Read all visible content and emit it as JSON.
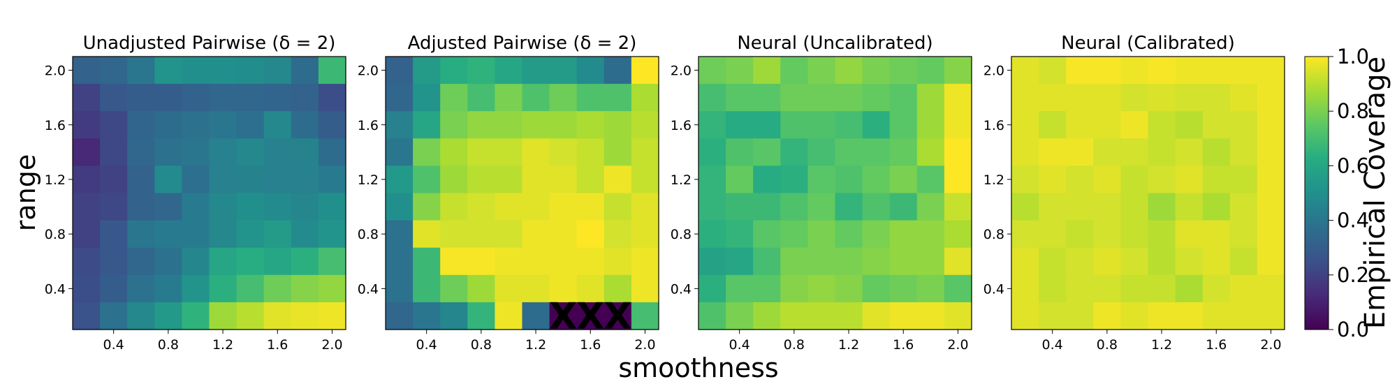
{
  "chart_data": {
    "type": "heatmap",
    "figure": {
      "xlabel": "smoothness",
      "ylabel": "range",
      "colorbar": {
        "label": "Empirical Coverage",
        "range": [
          0.0,
          1.0
        ],
        "ticks": [
          "0.0",
          "0.2",
          "0.4",
          "0.6",
          "0.8",
          "1.0"
        ],
        "colormap": "viridis"
      },
      "x_ticks": [
        "0.4",
        "0.8",
        "1.2",
        "1.6",
        "2.0"
      ],
      "y_ticks": [
        "2.0",
        "1.6",
        "1.2",
        "0.8",
        "0.4"
      ],
      "grid_rows": 10,
      "grid_cols": 10,
      "row_order": "top row corresponds to range 2.0, bottom row to range 0.2",
      "col_order": "left column corresponds to smoothness 0.2, right column to smoothness 2.0",
      "missing_marker": "X"
    },
    "panels": [
      {
        "title": "Unadjusted Pairwise (δ = 2)",
        "values": [
          [
            0.32,
            0.34,
            0.4,
            0.52,
            0.5,
            0.5,
            0.49,
            0.47,
            0.36,
            0.68
          ],
          [
            0.2,
            0.28,
            0.3,
            0.3,
            0.32,
            0.34,
            0.34,
            0.33,
            0.32,
            0.24
          ],
          [
            0.18,
            0.22,
            0.33,
            0.36,
            0.38,
            0.4,
            0.37,
            0.47,
            0.36,
            0.3
          ],
          [
            0.12,
            0.22,
            0.34,
            0.38,
            0.4,
            0.44,
            0.47,
            0.44,
            0.45,
            0.36
          ],
          [
            0.18,
            0.2,
            0.32,
            0.48,
            0.37,
            0.44,
            0.45,
            0.44,
            0.44,
            0.42
          ],
          [
            0.2,
            0.22,
            0.32,
            0.34,
            0.42,
            0.47,
            0.5,
            0.48,
            0.46,
            0.5
          ],
          [
            0.2,
            0.28,
            0.4,
            0.42,
            0.42,
            0.47,
            0.52,
            0.55,
            0.48,
            0.52
          ],
          [
            0.23,
            0.28,
            0.34,
            0.38,
            0.46,
            0.6,
            0.63,
            0.6,
            0.64,
            0.7
          ],
          [
            0.24,
            0.3,
            0.38,
            0.42,
            0.52,
            0.64,
            0.7,
            0.78,
            0.82,
            0.84
          ],
          [
            0.26,
            0.38,
            0.47,
            0.54,
            0.65,
            0.86,
            0.9,
            0.96,
            0.97,
            0.98
          ]
        ]
      },
      {
        "title": "Adjusted Pairwise (δ = 2)",
        "values": [
          [
            0.32,
            0.55,
            0.63,
            0.65,
            0.6,
            0.55,
            0.55,
            0.48,
            0.36,
            1.0
          ],
          [
            0.34,
            0.52,
            0.78,
            0.7,
            0.8,
            0.72,
            0.78,
            0.72,
            0.72,
            0.88
          ],
          [
            0.44,
            0.6,
            0.8,
            0.84,
            0.84,
            0.86,
            0.86,
            0.88,
            0.86,
            0.9
          ],
          [
            0.4,
            0.8,
            0.88,
            0.92,
            0.92,
            0.96,
            0.94,
            0.92,
            0.86,
            0.92
          ],
          [
            0.54,
            0.72,
            0.86,
            0.9,
            0.9,
            0.96,
            0.96,
            0.92,
            0.98,
            0.92
          ],
          [
            0.5,
            0.82,
            0.92,
            0.94,
            0.96,
            0.96,
            0.98,
            0.98,
            0.92,
            0.96
          ],
          [
            0.38,
            0.96,
            0.94,
            0.94,
            0.94,
            0.98,
            0.98,
            1.0,
            0.94,
            0.96
          ],
          [
            0.38,
            0.68,
            0.99,
            0.99,
            0.98,
            0.98,
            0.98,
            0.98,
            0.96,
            0.98
          ],
          [
            0.38,
            0.68,
            0.78,
            0.86,
            0.96,
            0.96,
            0.98,
            0.96,
            0.88,
            0.98
          ],
          [
            0.34,
            0.4,
            0.46,
            0.66,
            0.98,
            0.36,
            null,
            null,
            null,
            0.7
          ]
        ]
      },
      {
        "title": "Neural (Uncalibrated)",
        "values": [
          [
            0.78,
            0.8,
            0.86,
            0.76,
            0.8,
            0.84,
            0.8,
            0.78,
            0.76,
            0.82
          ],
          [
            0.7,
            0.74,
            0.74,
            0.78,
            0.78,
            0.78,
            0.76,
            0.74,
            0.86,
            0.98
          ],
          [
            0.66,
            0.62,
            0.62,
            0.72,
            0.72,
            0.7,
            0.64,
            0.74,
            0.86,
            0.98
          ],
          [
            0.64,
            0.72,
            0.74,
            0.66,
            0.7,
            0.74,
            0.74,
            0.76,
            0.88,
            1.0
          ],
          [
            0.66,
            0.76,
            0.62,
            0.64,
            0.74,
            0.72,
            0.76,
            0.8,
            0.74,
            1.0
          ],
          [
            0.66,
            0.68,
            0.68,
            0.72,
            0.76,
            0.66,
            0.72,
            0.68,
            0.8,
            0.92
          ],
          [
            0.64,
            0.66,
            0.74,
            0.76,
            0.8,
            0.76,
            0.8,
            0.84,
            0.84,
            0.88
          ],
          [
            0.58,
            0.6,
            0.7,
            0.8,
            0.8,
            0.8,
            0.82,
            0.84,
            0.84,
            0.96
          ],
          [
            0.64,
            0.74,
            0.74,
            0.82,
            0.84,
            0.82,
            0.76,
            0.78,
            0.8,
            0.74
          ],
          [
            0.72,
            0.8,
            0.86,
            0.9,
            0.9,
            0.9,
            0.96,
            0.98,
            0.98,
            0.96
          ]
        ]
      },
      {
        "title": "Neural (Calibrated)",
        "values": [
          [
            0.96,
            0.94,
            0.99,
            0.99,
            0.98,
            0.99,
            0.98,
            0.98,
            0.98,
            0.98
          ],
          [
            0.96,
            0.96,
            0.96,
            0.96,
            0.94,
            0.95,
            0.94,
            0.94,
            0.96,
            0.98
          ],
          [
            0.96,
            0.92,
            0.96,
            0.96,
            0.98,
            0.92,
            0.9,
            0.94,
            0.94,
            0.98
          ],
          [
            0.96,
            0.98,
            0.98,
            0.94,
            0.94,
            0.92,
            0.94,
            0.9,
            0.94,
            0.98
          ],
          [
            0.94,
            0.96,
            0.94,
            0.96,
            0.92,
            0.94,
            0.96,
            0.92,
            0.92,
            0.98
          ],
          [
            0.9,
            0.94,
            0.94,
            0.94,
            0.92,
            0.86,
            0.92,
            0.88,
            0.94,
            0.98
          ],
          [
            0.94,
            0.94,
            0.92,
            0.94,
            0.92,
            0.9,
            0.96,
            0.96,
            0.94,
            0.98
          ],
          [
            0.96,
            0.92,
            0.94,
            0.96,
            0.94,
            0.9,
            0.94,
            0.96,
            0.92,
            0.98
          ],
          [
            0.96,
            0.92,
            0.94,
            0.94,
            0.92,
            0.92,
            0.88,
            0.94,
            0.96,
            0.96
          ],
          [
            0.96,
            0.94,
            0.94,
            0.98,
            0.96,
            0.98,
            0.98,
            0.96,
            0.96,
            0.96
          ]
        ]
      }
    ]
  }
}
